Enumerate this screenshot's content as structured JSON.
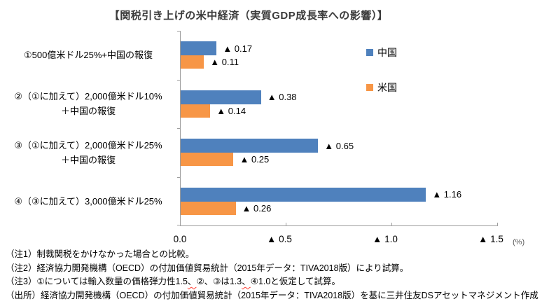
{
  "title": "【関税引き上げの米中経済（実質GDP成長率への影響）】",
  "chart_data": {
    "type": "bar",
    "orientation": "horizontal",
    "title": "【関税引き上げの米中経済（実質GDP成長率への影響）】",
    "categories": [
      {
        "lines": [
          "①500億米ドル25%+中国の報復"
        ]
      },
      {
        "lines": [
          "②（①に加えて）2,000億米ドル10%",
          "＋中国の報復"
        ]
      },
      {
        "lines": [
          "③（①に加えて）2,000億米ドル25%",
          "＋中国の報復"
        ]
      },
      {
        "lines": [
          "④（③に加えて）3,000億米ドル25%"
        ]
      }
    ],
    "series": [
      {
        "name": "中国",
        "color": "#4f81bd",
        "values": [
          0.17,
          0.38,
          0.65,
          1.16
        ],
        "labels": [
          "▲ 0.17",
          "▲ 0.38",
          "▲ 0.65",
          "▲ 1.16"
        ]
      },
      {
        "name": "米国",
        "color": "#f79646",
        "values": [
          0.11,
          0.14,
          0.25,
          0.26
        ],
        "labels": [
          "▲ 0.11",
          "▲ 0.14",
          "▲ 0.25",
          "▲ 0.26"
        ]
      }
    ],
    "value_note": "values are magnitudes of negative GDP impact (▲ = minus)",
    "xlim": [
      0,
      1.5
    ],
    "x_ticks": [
      {
        "pos": 0.0,
        "label": "0.0"
      },
      {
        "pos": 0.5,
        "label": "▲ 0.5"
      },
      {
        "pos": 1.0,
        "label": "▲ 1.0"
      },
      {
        "pos": 1.5,
        "label": "▲ 1.5"
      }
    ],
    "x_unit": "(%)",
    "grid": false,
    "legend_position": "upper-right-inside"
  },
  "notes": [
    {
      "segments": [
        {
          "text": "（注1）制裁関税をかけなかった場合との比較。",
          "squiggle": false
        }
      ]
    },
    {
      "segments": [
        {
          "text": "（注2）経済協力開発機構（OECD）の付加価値貿易統計（2015年データ：TIVA2018版）により試算。",
          "squiggle": false
        }
      ]
    },
    {
      "segments": [
        {
          "text": "（注3）①については輸入数量の価格弾力性1.5",
          "squiggle": false
        },
        {
          "text": "、",
          "squiggle": true
        },
        {
          "text": "②、③は1.3",
          "squiggle": false
        },
        {
          "text": "、",
          "squiggle": true
        },
        {
          "text": "④1.0と仮定して試算。",
          "squiggle": false
        }
      ]
    },
    {
      "segments": [
        {
          "text": "（出所）経済協力開発機構（OECD）の付加価値貿易統計（2015年データ：TIVA2018版）を基に三井住友DSアセットマネジメント作成",
          "squiggle": false
        }
      ]
    }
  ]
}
